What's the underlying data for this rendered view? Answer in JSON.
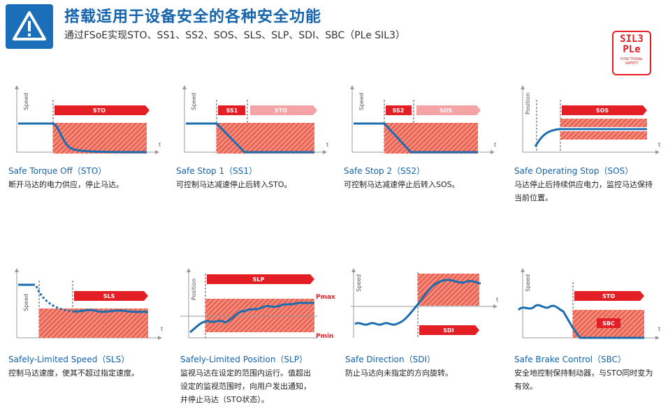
{
  "header": {
    "title": "搭载适用于设备安全的各种安全功能",
    "subtitle": "通过FSoE实现STO、SS1、SS2、SOS、SLS、SLP、SDI、SBC（PLe SIL3）",
    "warning_icon": "warning-triangle-icon"
  },
  "badge": {
    "line1": "SIL3",
    "line2": "PLe",
    "line3": "FUNCTIONAL",
    "line4": "SAFETY"
  },
  "colors": {
    "title_blue": "#1463ad",
    "accent_red": "#e31e24",
    "curve_blue": "#1c6cb0"
  },
  "axes": {
    "speed": "Speed",
    "position": "Position",
    "time": "t"
  },
  "panels": [
    {
      "id": "sto",
      "name": "Safe Torque Off（STO）",
      "desc": "断开马达的电力供应，停止马达。",
      "bars": [
        "STO"
      ]
    },
    {
      "id": "ss1",
      "name": "Safe Stop 1（SS1）",
      "desc": "可控制马达减速停止后转入STO。",
      "bars": [
        "SS1",
        "STO"
      ]
    },
    {
      "id": "ss2",
      "name": "Safe Stop 2（SS2）",
      "desc": "可控制马达减速停止后转入SOS。",
      "bars": [
        "SS2",
        "SOS"
      ]
    },
    {
      "id": "sos",
      "name": "Safe Operating Stop（SOS）",
      "desc": "马达停止后持续供应电力，监控马达保持当前位置。",
      "bars": [
        "SOS"
      ]
    },
    {
      "id": "sls",
      "name": "Safely-Limited Speed（SLS）",
      "desc": "控制马达速度，使其不超过指定速度。",
      "bars": [
        "SLS"
      ]
    },
    {
      "id": "slp",
      "name": "Safely-Limited Position（SLP）",
      "desc": "监视马达在设定的范围内运行。值超出设定的监视范围时，向用户发出通知，并停止马达（STO状态）。",
      "bars": [
        "SLP"
      ],
      "limits": [
        "Pmax",
        "Pmin"
      ]
    },
    {
      "id": "sdi",
      "name": "Safe Direction（SDI）",
      "desc": "防止马达向未指定的方向旋转。",
      "bars": [
        "SDI"
      ]
    },
    {
      "id": "sbc",
      "name": "Safe Brake Control（SBC）",
      "desc": "安全地控制保持制动器，与STO同时变为有效。",
      "bars": [
        "STO",
        "SBC"
      ]
    }
  ]
}
